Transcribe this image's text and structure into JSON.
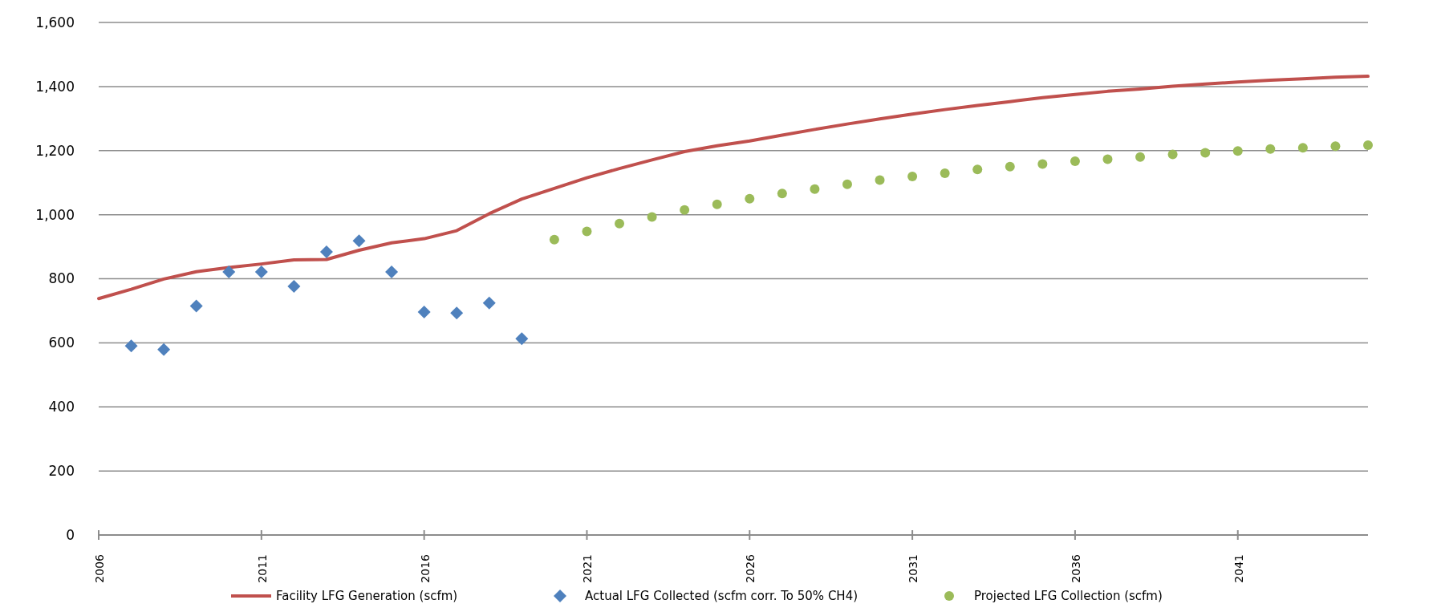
{
  "chart_data": {
    "type": "line",
    "xlim": [
      2006,
      2045
    ],
    "ylim": [
      0,
      1600
    ],
    "xticks": [
      2006,
      2011,
      2016,
      2021,
      2026,
      2031,
      2036,
      2041
    ],
    "yticks": [
      0,
      {
        "value": 200,
        "label": "200"
      },
      {
        "value": 400,
        "label": "400"
      },
      {
        "value": 600,
        "label": "600"
      },
      {
        "value": 800,
        "label": "800"
      },
      {
        "value": 1000,
        "label": "1,000"
      },
      {
        "value": 1200,
        "label": "1,200"
      },
      {
        "value": 1400,
        "label": "1,400"
      },
      {
        "value": 1600,
        "label": "1,600"
      }
    ],
    "grid": "y",
    "legend": "bottom",
    "series": [
      {
        "name": "Facility LFG Generation (scfm)",
        "color": "#c0504d",
        "marker": "none",
        "line_style": "solid",
        "x": [
          2006,
          2007,
          2008,
          2009,
          2010,
          2011,
          2012,
          2013,
          2014,
          2015,
          2016,
          2017,
          2018,
          2019,
          2020,
          2021,
          2022,
          2023,
          2024,
          2025,
          2026,
          2027,
          2028,
          2029,
          2030,
          2031,
          2032,
          2033,
          2034,
          2035,
          2036,
          2037,
          2038,
          2039,
          2040,
          2041,
          2042,
          2043,
          2044,
          2045
        ],
        "values": [
          738,
          767,
          799,
          822,
          835,
          846,
          859,
          860,
          889,
          912,
          925,
          950,
          1003,
          1049,
          1082,
          1115,
          1144,
          1171,
          1197,
          1215,
          1230,
          1248,
          1266,
          1283,
          1299,
          1314,
          1328,
          1341,
          1353,
          1365,
          1375,
          1385,
          1392,
          1401,
          1408,
          1414,
          1420,
          1424,
          1429,
          1432
        ]
      },
      {
        "name": "Actual LFG Collected (scfm corr. To 50% CH4)",
        "type": "scatter",
        "color": "#4f81bd",
        "marker": "diamond",
        "x": [
          2007,
          2008,
          2009,
          2010,
          2011,
          2012,
          2013,
          2014,
          2015,
          2016,
          2017,
          2018,
          2019
        ],
        "values": [
          590,
          579,
          715,
          821,
          821,
          776,
          884,
          918,
          821,
          696,
          693,
          724,
          613
        ]
      },
      {
        "name": "Projected LFG Collection (scfm)",
        "type": "scatter",
        "color": "#9bbb59",
        "marker": "circle",
        "x": [
          2020,
          2021,
          2022,
          2023,
          2024,
          2025,
          2026,
          2027,
          2028,
          2029,
          2030,
          2031,
          2032,
          2033,
          2034,
          2035,
          2036,
          2037,
          2038,
          2039,
          2040,
          2041,
          2042,
          2043,
          2044,
          2045
        ],
        "values": [
          922,
          948,
          972,
          993,
          1015,
          1032,
          1050,
          1066,
          1080,
          1095,
          1108,
          1119,
          1129,
          1141,
          1150,
          1158,
          1167,
          1173,
          1180,
          1188,
          1193,
          1199,
          1205,
          1209,
          1214,
          1217
        ]
      }
    ]
  }
}
